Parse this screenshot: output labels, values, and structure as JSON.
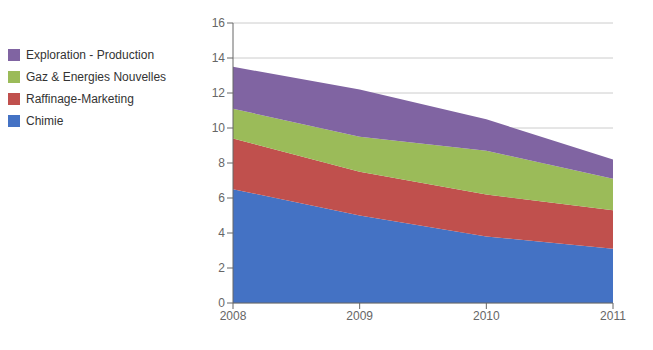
{
  "chart_data": {
    "type": "area",
    "stacked": true,
    "x": [
      2008,
      2009,
      2010,
      2011
    ],
    "xlim": [
      2008,
      2011
    ],
    "xticks": [
      2008,
      2009,
      2010,
      2011
    ],
    "ylim": [
      0,
      16
    ],
    "yticks": [
      0,
      2,
      4,
      6,
      8,
      10,
      12,
      14,
      16
    ],
    "grid": true,
    "legend": "left",
    "series": [
      {
        "name": "Chimie",
        "color": "#4472C4",
        "values": [
          6.5,
          5.0,
          3.8,
          3.1
        ]
      },
      {
        "name": "Raffinage-Marketing",
        "color": "#C0504D",
        "values": [
          2.9,
          2.5,
          2.4,
          2.2
        ]
      },
      {
        "name": "Gaz & Energies Nouvelles",
        "color": "#9BBB59",
        "values": [
          1.7,
          2.0,
          2.5,
          1.8
        ]
      },
      {
        "name": "Exploration - Production",
        "color": "#8064A2",
        "values": [
          2.4,
          2.7,
          1.8,
          1.1
        ]
      }
    ]
  }
}
